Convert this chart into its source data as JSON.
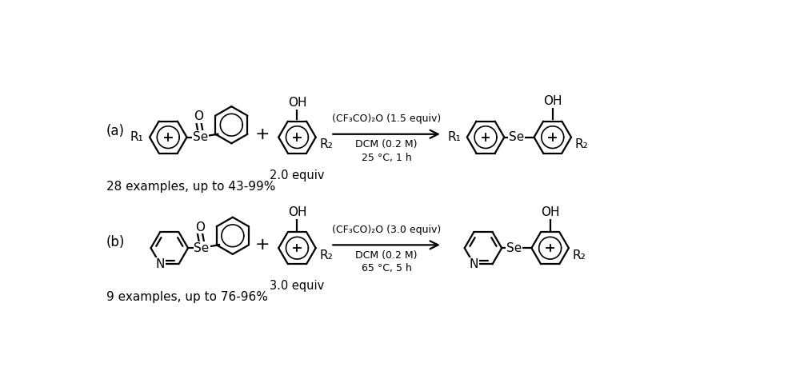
{
  "background_color": "#ffffff",
  "label_a": "(a)",
  "label_b": "(b)",
  "reaction_a": {
    "reagent": "(CF₃CO)₂O (1.5 equiv)",
    "solvent": "DCM (0.2 M)",
    "conditions": "25 °C, 1 h",
    "equiv_label": "2.0 equiv",
    "yield_text": "28 examples, up to 43-99%"
  },
  "reaction_b": {
    "reagent": "(CF₃CO)₂O (3.0 equiv)",
    "solvent": "DCM (0.2 M)",
    "conditions": "65 °C, 5 h",
    "equiv_label": "3.0 equiv",
    "yield_text": "9 examples, up to 76-96%"
  },
  "text_color": "#000000",
  "font_size_label": 12,
  "font_size_text": 11,
  "font_size_atom": 11,
  "line_width": 1.6,
  "line_color": "#000000"
}
